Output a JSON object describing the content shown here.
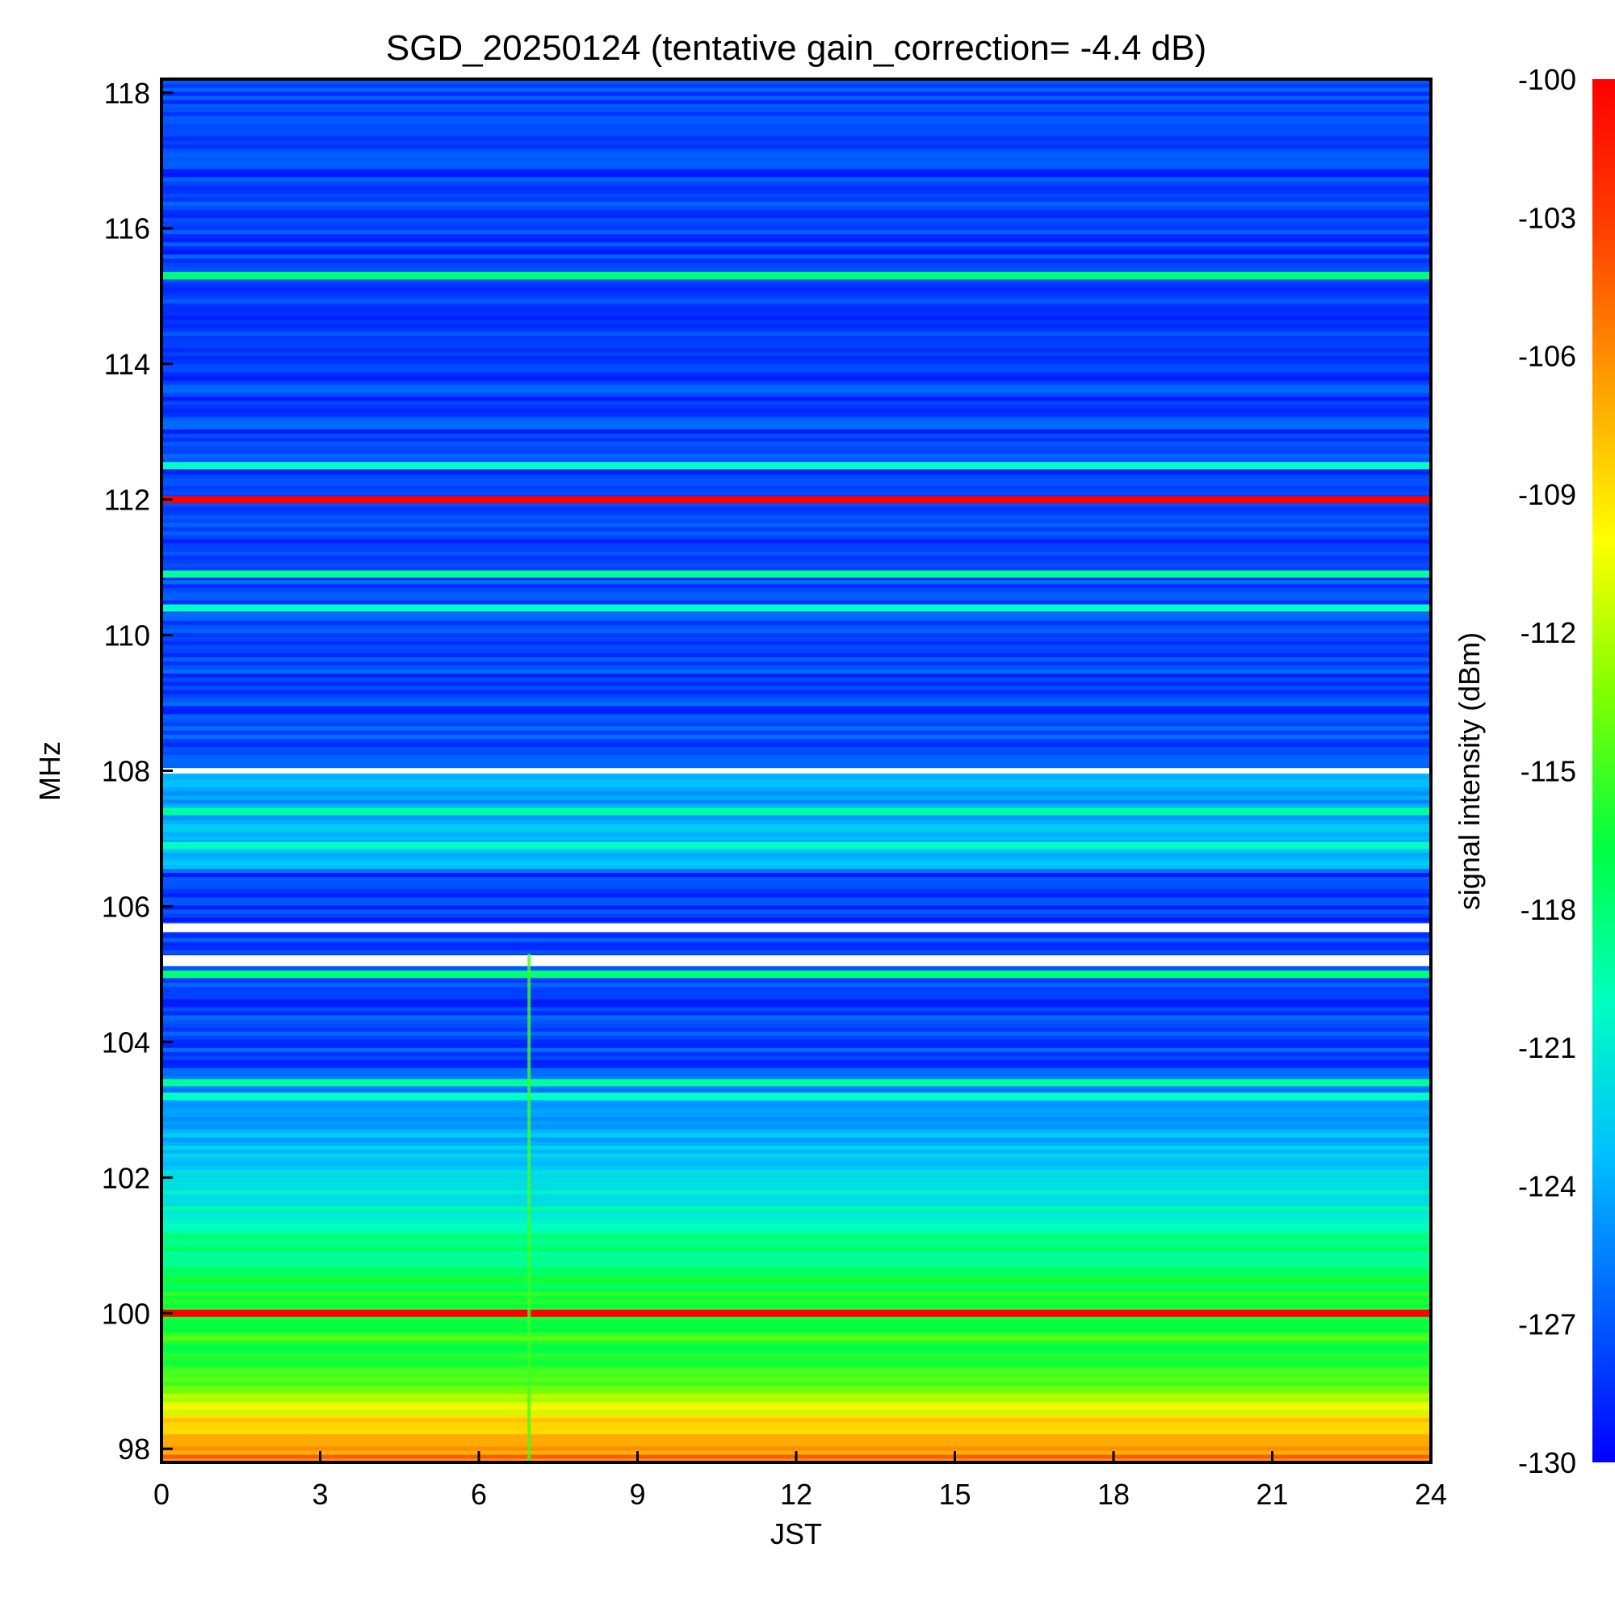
{
  "chart_data": {
    "type": "heatmap",
    "title": "SGD_20250124 (tentative gain_correction= -4.4 dB)",
    "xlabel": "JST",
    "ylabel": "MHz",
    "colorbar_label": "signal intensity (dBm)",
    "x_range": [
      0,
      24
    ],
    "y_range": [
      97.8,
      118.2
    ],
    "x_ticks": [
      0,
      3,
      6,
      9,
      12,
      15,
      18,
      21,
      24
    ],
    "y_ticks": [
      98,
      100,
      102,
      104,
      106,
      108,
      110,
      112,
      114,
      116,
      118
    ],
    "colorbar_range": [
      -130,
      -100
    ],
    "colorbar_ticks": [
      -100,
      -103,
      -106,
      -109,
      -112,
      -115,
      -118,
      -121,
      -124,
      -127,
      -130
    ],
    "colormap": [
      "#0000ff",
      "#0060ff",
      "#00c0ff",
      "#00ffc0",
      "#00ff40",
      "#80ff00",
      "#ffff00",
      "#ffa000",
      "#ff4000",
      "#ff0000"
    ],
    "background_profile": [
      {
        "freq": 97.8,
        "dbm": -105
      },
      {
        "freq": 98.3,
        "dbm": -108
      },
      {
        "freq": 99.0,
        "dbm": -115
      },
      {
        "freq": 100.5,
        "dbm": -117
      },
      {
        "freq": 101.5,
        "dbm": -120
      },
      {
        "freq": 102.5,
        "dbm": -123
      },
      {
        "freq": 103.3,
        "dbm": -125
      },
      {
        "freq": 103.6,
        "dbm": -127.5
      },
      {
        "freq": 106.5,
        "dbm": -128
      },
      {
        "freq": 106.6,
        "dbm": -124
      },
      {
        "freq": 108.0,
        "dbm": -124
      },
      {
        "freq": 108.1,
        "dbm": -127.5
      },
      {
        "freq": 118.2,
        "dbm": -128
      }
    ],
    "stations": [
      {
        "freq": 100.0,
        "dbm": -100
      },
      {
        "freq": 112.0,
        "dbm": -100
      },
      {
        "freq": 105.0,
        "dbm": -118
      },
      {
        "freq": 115.3,
        "dbm": -118
      },
      {
        "freq": 112.5,
        "dbm": -120
      },
      {
        "freq": 110.9,
        "dbm": -119
      },
      {
        "freq": 110.4,
        "dbm": -120
      },
      {
        "freq": 107.4,
        "dbm": -119
      },
      {
        "freq": 106.9,
        "dbm": -120
      },
      {
        "freq": 103.4,
        "dbm": -119
      },
      {
        "freq": 103.2,
        "dbm": -120
      }
    ],
    "gaps": [
      {
        "from": 105.12,
        "to": 105.28
      },
      {
        "from": 105.62,
        "to": 105.75
      },
      {
        "from": 107.96,
        "to": 108.04
      }
    ],
    "transient": {
      "time": 6.95,
      "freq_from": 97.8,
      "freq_to": 105.3
    }
  }
}
